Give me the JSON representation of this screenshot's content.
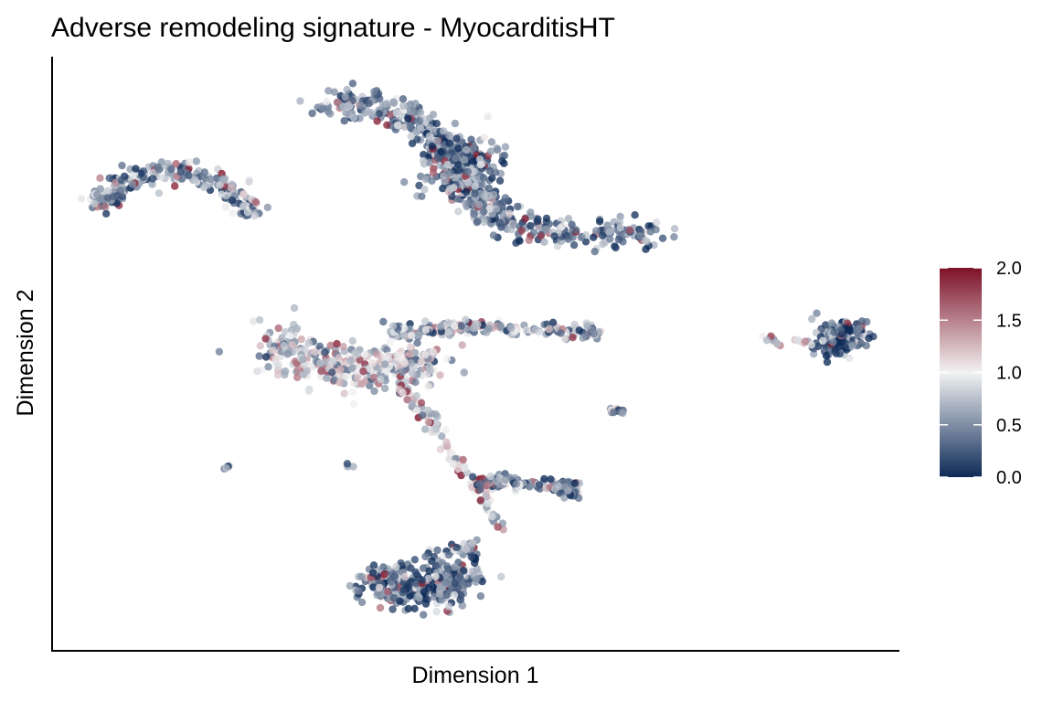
{
  "chart_data": {
    "type": "scatter",
    "title": "Adverse remodeling signature - MyocarditisHT",
    "xlabel": "Dimension 1",
    "ylabel": "Dimension 2",
    "xlim": [
      0,
      100
    ],
    "ylim": [
      0,
      100
    ],
    "grid": false,
    "x_ticks_shown": false,
    "y_ticks_shown": false,
    "legend": {
      "placement": "right",
      "type": "colorbar",
      "min": 0.0,
      "max": 2.0,
      "ticks": [
        "2.0",
        "1.5",
        "1.0",
        "0.5",
        "0.0"
      ],
      "tick_values": [
        2.0,
        1.5,
        1.0,
        0.5,
        0.0
      ]
    },
    "colorscale": {
      "low": "#0d2a57",
      "mid": "#f2f2f2",
      "high": "#7d1128"
    },
    "point_opacity": 0.78,
    "clusters": [
      {
        "name": "",
        "path": [
          [
            5,
            75
          ],
          [
            7,
            78
          ],
          [
            11,
            80
          ],
          [
            16,
            80
          ],
          [
            21,
            78
          ],
          [
            24,
            73
          ]
        ],
        "n": 230,
        "spread": 2.0,
        "mean": 0.6
      },
      {
        "name": "",
        "path": [
          [
            32,
            92
          ],
          [
            37,
            92
          ],
          [
            43,
            89
          ],
          [
            47,
            84
          ],
          [
            49,
            79
          ],
          [
            51,
            74
          ],
          [
            56,
            71
          ],
          [
            63,
            70
          ],
          [
            72,
            70
          ]
        ],
        "n": 520,
        "spread": 2.6,
        "mean": 0.45
      },
      {
        "name": "",
        "path": [
          [
            48,
            84
          ],
          [
            48,
            79
          ]
        ],
        "n": 220,
        "spread": 4.5,
        "mean": 0.45
      },
      {
        "name": "",
        "path": [
          [
            26,
            52
          ],
          [
            29,
            49
          ],
          [
            33,
            48
          ],
          [
            37,
            47
          ],
          [
            41,
            47
          ],
          [
            45,
            49
          ]
        ],
        "n": 360,
        "spread": 3.8,
        "mean": 0.85
      },
      {
        "name": "",
        "path": [
          [
            40,
            53
          ],
          [
            46,
            54
          ],
          [
            52,
            54
          ],
          [
            58,
            54
          ],
          [
            65,
            53
          ]
        ],
        "n": 180,
        "spread": 1.3,
        "mean": 0.6
      },
      {
        "name": "",
        "path": [
          [
            92,
            52
          ],
          [
            95,
            53
          ]
        ],
        "n": 150,
        "spread": 2.8,
        "mean": 0.3
      },
      {
        "name": "",
        "path": [
          [
            84,
            52
          ],
          [
            87,
            52
          ],
          [
            90,
            51
          ]
        ],
        "n": 16,
        "spread": 1.0,
        "mean": 1.0
      },
      {
        "name": "",
        "path": [
          [
            66,
            40
          ],
          [
            67.5,
            40
          ]
        ],
        "n": 14,
        "spread": 0.5,
        "mean": 0.35
      },
      {
        "name": "",
        "path": [
          [
            20,
            30
          ],
          [
            21,
            31
          ]
        ],
        "n": 5,
        "spread": 0.3,
        "mean": 0.8
      },
      {
        "name": "",
        "path": [
          [
            41,
            44
          ],
          [
            44,
            40
          ],
          [
            47,
            33
          ],
          [
            50,
            27
          ],
          [
            53,
            20
          ]
        ],
        "n": 90,
        "spread": 1.0,
        "mean": 1.0
      },
      {
        "name": "",
        "path": [
          [
            50,
            28
          ],
          [
            55,
            28
          ],
          [
            60,
            27.5
          ],
          [
            62,
            26
          ]
        ],
        "n": 120,
        "spread": 1.2,
        "mean": 0.5
      },
      {
        "name": "",
        "path": [
          [
            50,
            17
          ],
          [
            47,
            16
          ],
          [
            44,
            15
          ],
          [
            41,
            13
          ],
          [
            38,
            12
          ]
        ],
        "n": 60,
        "spread": 1.1,
        "mean": 0.5
      },
      {
        "name": "",
        "path": [
          [
            38,
            11
          ],
          [
            42,
            10
          ],
          [
            46,
            10.5
          ],
          [
            49,
            12
          ]
        ],
        "n": 340,
        "spread": 3.2,
        "mean": 0.4
      },
      {
        "name": "",
        "path": [
          [
            35,
            31
          ],
          [
            36,
            30
          ]
        ],
        "n": 3,
        "spread": 0.5,
        "mean": 0.5
      }
    ]
  }
}
